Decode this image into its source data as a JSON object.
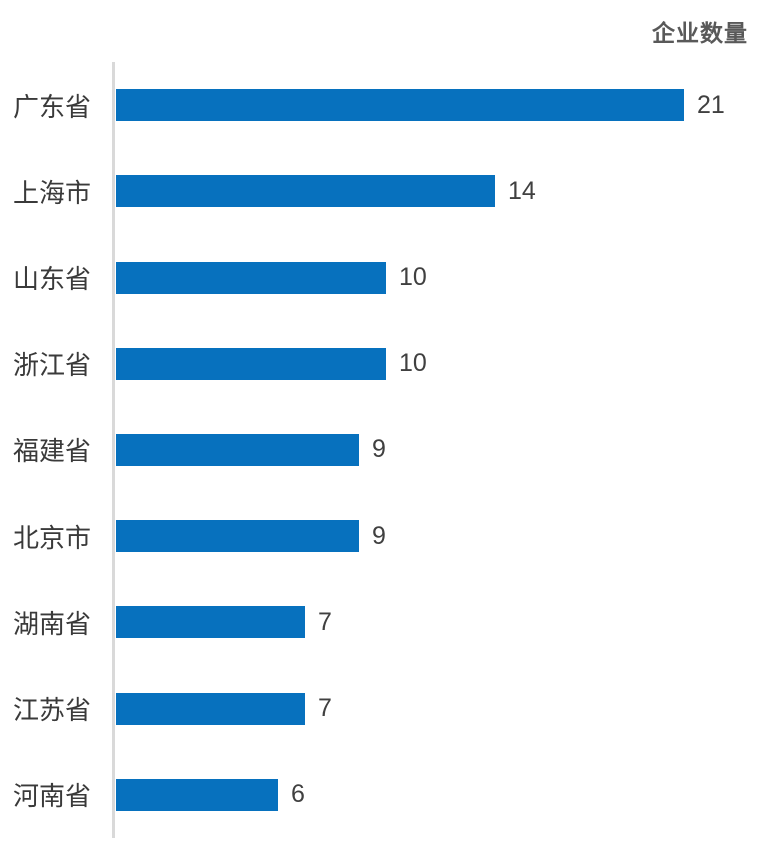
{
  "colors": {
    "bar": "#0771BE",
    "axis_line": "#D9D9D9",
    "category_label": "#3A3A3A",
    "value_label": "#404040",
    "title": "#595959",
    "background": "#FFFFFF"
  },
  "chart_data": {
    "type": "bar",
    "orientation": "horizontal",
    "title": "企业数量",
    "xlabel": "",
    "ylabel": "",
    "categories": [
      "广东省",
      "上海市",
      "山东省",
      "浙江省",
      "福建省",
      "北京市",
      "湖南省",
      "江苏省",
      "河南省"
    ],
    "values": [
      21,
      14,
      10,
      10,
      9,
      9,
      7,
      7,
      6
    ],
    "xlim": [
      0,
      21
    ],
    "grid": false,
    "legend": false,
    "value_labels_shown": true,
    "title_position": "top-right",
    "axis_line": "left-vertical-only"
  }
}
